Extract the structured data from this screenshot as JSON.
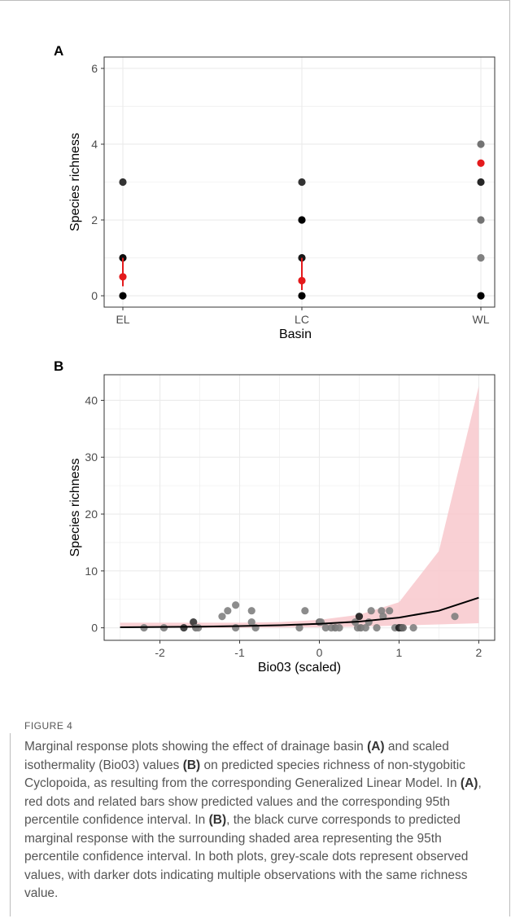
{
  "figure_label": "FIGURE 4",
  "caption": [
    {
      "t": "Marginal response plots showing the effect of drainage basin "
    },
    {
      "t": "(A)",
      "b": true
    },
    {
      "t": " and scaled isothermality (Bio03) values "
    },
    {
      "t": "(B)",
      "b": true
    },
    {
      "t": " on predicted species richness of non-stygobitic Cyclopoida, as resulting from the corresponding Generalized Linear Model. In "
    },
    {
      "t": "(A)",
      "b": true
    },
    {
      "t": ", red dots and related bars show predicted values and the corresponding 95th percentile confidence interval. In "
    },
    {
      "t": "(B)",
      "b": true
    },
    {
      "t": ", the black curve corresponds to predicted marginal response with the surrounding shaded area representing the 95th percentile confidence interval. In both plots, grey-scale dots represent observed values, with darker dots indicating multiple observations with the same richness value."
    }
  ],
  "colors": {
    "predicted": "#e41a1c",
    "ci_fill": "#f8c8cc",
    "curve": "#000000",
    "panel_bg": "#ffffff",
    "grid": "#ebebeb"
  },
  "chart_data": [
    {
      "panel": "A",
      "type": "scatter",
      "xlabel": "Basin",
      "ylabel": "Species richness",
      "categories": [
        "EL",
        "LC",
        "WL"
      ],
      "ylim": [
        -0.3,
        6.3
      ],
      "yticks": [
        0,
        2,
        4,
        6
      ],
      "grid": true,
      "observed": [
        {
          "x": "EL",
          "y": 0,
          "shade": 1.0
        },
        {
          "x": "EL",
          "y": 1,
          "shade": 0.95
        },
        {
          "x": "EL",
          "y": 3,
          "shade": 0.8
        },
        {
          "x": "LC",
          "y": 0,
          "shade": 1.0
        },
        {
          "x": "LC",
          "y": 1,
          "shade": 0.9
        },
        {
          "x": "LC",
          "y": 2,
          "shade": 1.0
        },
        {
          "x": "LC",
          "y": 3,
          "shade": 0.8
        },
        {
          "x": "WL",
          "y": 0,
          "shade": 1.0
        },
        {
          "x": "WL",
          "y": 1,
          "shade": 0.5
        },
        {
          "x": "WL",
          "y": 2,
          "shade": 0.55
        },
        {
          "x": "WL",
          "y": 3,
          "shade": 0.85
        },
        {
          "x": "WL",
          "y": 4,
          "shade": 0.55
        }
      ],
      "predicted": [
        {
          "x": "EL",
          "y": 0.5,
          "lo": 0.25,
          "hi": 1.0
        },
        {
          "x": "LC",
          "y": 0.4,
          "lo": 0.15,
          "hi": 1.0
        },
        {
          "x": "WL",
          "y": 3.5,
          "lo": 3.5,
          "hi": 3.5
        }
      ]
    },
    {
      "panel": "B",
      "type": "line",
      "xlabel": "Bio03 (scaled)",
      "ylabel": "Species richness",
      "xlim": [
        -2.7,
        2.2
      ],
      "ylim": [
        -2.2,
        44.5
      ],
      "xticks": [
        -2,
        -1,
        0,
        1,
        2
      ],
      "yticks": [
        0,
        10,
        20,
        30,
        40
      ],
      "grid": true,
      "curve": {
        "x": [
          -2.5,
          -2.0,
          -1.5,
          -1.0,
          -0.5,
          0.0,
          0.5,
          1.0,
          1.5,
          2.0
        ],
        "y": [
          0.1,
          0.15,
          0.2,
          0.3,
          0.45,
          0.7,
          1.1,
          1.8,
          3.0,
          5.3
        ],
        "lo": [
          0.0,
          0.0,
          0.0,
          0.0,
          0.05,
          0.1,
          0.2,
          0.4,
          0.6,
          0.8
        ],
        "hi": [
          0.9,
          0.9,
          0.9,
          0.9,
          1.0,
          1.4,
          2.3,
          4.5,
          13.5,
          42.5
        ]
      },
      "observed": [
        {
          "x": -2.2,
          "y": 0,
          "shade": 0.5
        },
        {
          "x": -1.95,
          "y": 0,
          "shade": 0.5
        },
        {
          "x": -1.7,
          "y": 0,
          "shade": 0.8
        },
        {
          "x": -1.58,
          "y": 1,
          "shade": 0.8
        },
        {
          "x": -1.55,
          "y": 0,
          "shade": 0.55
        },
        {
          "x": -1.52,
          "y": 0,
          "shade": 0.5
        },
        {
          "x": -1.22,
          "y": 2,
          "shade": 0.5
        },
        {
          "x": -1.15,
          "y": 3,
          "shade": 0.5
        },
        {
          "x": -1.05,
          "y": 4,
          "shade": 0.5
        },
        {
          "x": -1.05,
          "y": 0,
          "shade": 0.5
        },
        {
          "x": -0.85,
          "y": 3,
          "shade": 0.5
        },
        {
          "x": -0.85,
          "y": 1,
          "shade": 0.5
        },
        {
          "x": -0.8,
          "y": 0,
          "shade": 0.5
        },
        {
          "x": -0.25,
          "y": 0,
          "shade": 0.5
        },
        {
          "x": -0.18,
          "y": 3,
          "shade": 0.5
        },
        {
          "x": 0.0,
          "y": 1,
          "shade": 0.6
        },
        {
          "x": 0.02,
          "y": 1,
          "shade": 0.5
        },
        {
          "x": 0.08,
          "y": 0,
          "shade": 0.5
        },
        {
          "x": 0.15,
          "y": 0,
          "shade": 0.5
        },
        {
          "x": 0.2,
          "y": 0,
          "shade": 0.55
        },
        {
          "x": 0.25,
          "y": 0,
          "shade": 0.5
        },
        {
          "x": 0.45,
          "y": 1,
          "shade": 0.5
        },
        {
          "x": 0.48,
          "y": 0,
          "shade": 0.5
        },
        {
          "x": 0.5,
          "y": 2,
          "shade": 0.9
        },
        {
          "x": 0.52,
          "y": 0,
          "shade": 0.55
        },
        {
          "x": 0.58,
          "y": 0,
          "shade": 0.5
        },
        {
          "x": 0.62,
          "y": 1,
          "shade": 0.5
        },
        {
          "x": 0.65,
          "y": 3,
          "shade": 0.5
        },
        {
          "x": 0.72,
          "y": 0,
          "shade": 0.5
        },
        {
          "x": 0.78,
          "y": 3,
          "shade": 0.5
        },
        {
          "x": 0.8,
          "y": 2,
          "shade": 0.5
        },
        {
          "x": 0.88,
          "y": 3,
          "shade": 0.5
        },
        {
          "x": 0.95,
          "y": 0,
          "shade": 0.5
        },
        {
          "x": 1.0,
          "y": 0,
          "shade": 0.9
        },
        {
          "x": 1.03,
          "y": 0,
          "shade": 0.8
        },
        {
          "x": 1.05,
          "y": 0,
          "shade": 0.6
        },
        {
          "x": 1.18,
          "y": 0,
          "shade": 0.5
        },
        {
          "x": 1.7,
          "y": 2,
          "shade": 0.5
        }
      ]
    }
  ]
}
